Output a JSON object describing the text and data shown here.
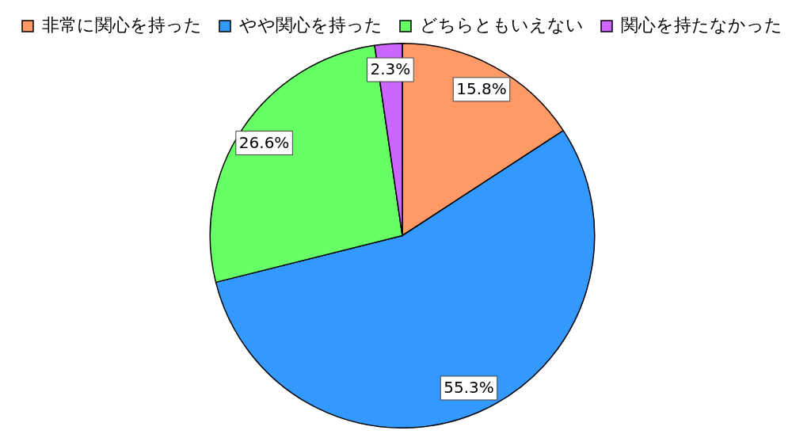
{
  "chart_data": {
    "type": "pie",
    "categories": [
      "非常に関心を持った",
      "やや関心を持った",
      "どちらともいえない",
      "関心を持たなかった"
    ],
    "values": [
      15.8,
      55.3,
      26.6,
      2.3
    ],
    "colors": [
      "#ff9966",
      "#3399ff",
      "#66ff66",
      "#cc66ff"
    ],
    "value_labels": [
      "15.8%",
      "55.3%",
      "26.6%",
      "2.3%"
    ],
    "legend": "top"
  }
}
